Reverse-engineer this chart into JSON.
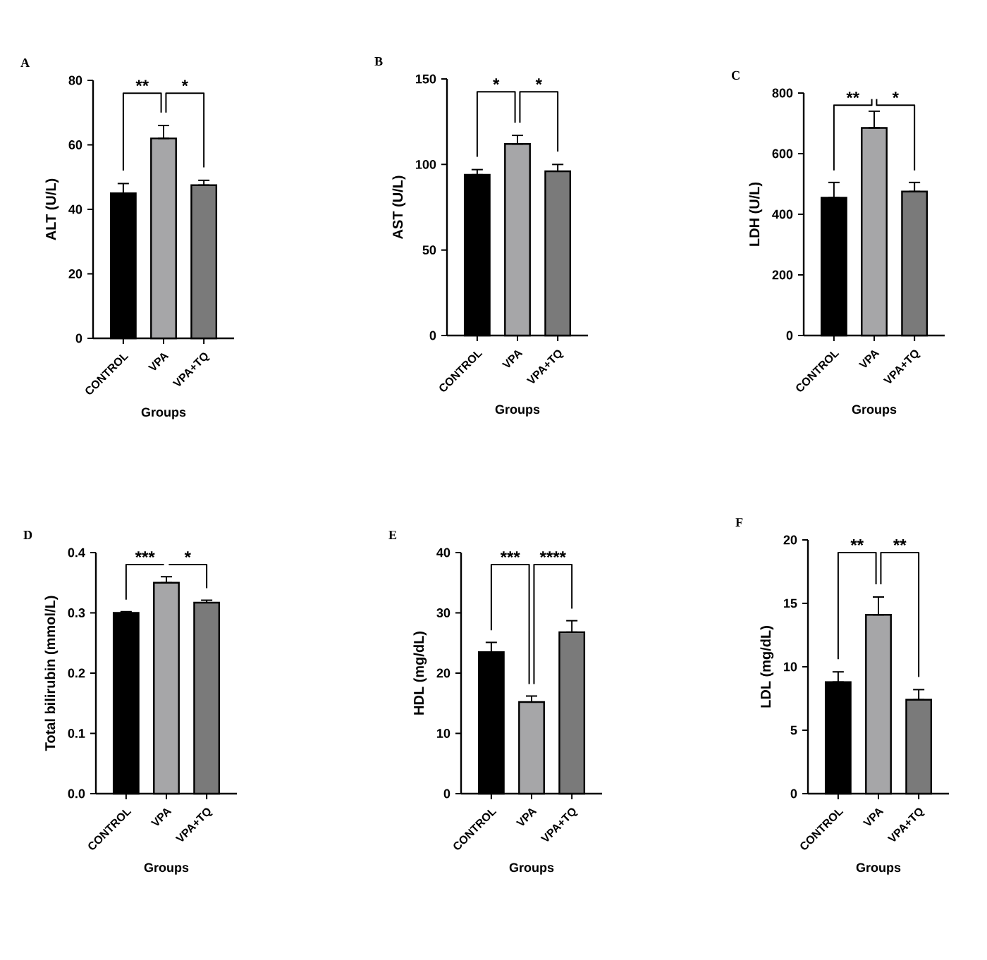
{
  "chart_data": [
    {
      "type": "bar",
      "title": "A",
      "categories": [
        "CONTROL",
        "VPA",
        "VPA+TQ"
      ],
      "xlabel": "Groups",
      "ylabel": "ALT (U/L)",
      "colors": [
        "#000000",
        "#a6a6a8",
        "#7a7a7a"
      ],
      "values": [
        45,
        62,
        47.5
      ],
      "errors": [
        [
          45,
          48
        ],
        [
          62,
          66
        ],
        [
          47.5,
          49
        ]
      ],
      "ylim": [
        0,
        80
      ],
      "yticks": [
        0,
        20,
        40,
        60,
        80
      ],
      "annotations": [
        "**",
        "*"
      ]
    },
    {
      "type": "bar",
      "title": "B",
      "categories": [
        "CONTROL",
        "VPA",
        "VPA+TQ"
      ],
      "xlabel": "Groups",
      "ylabel": "AST (U/L)",
      "colors": [
        "#000000",
        "#a6a6a8",
        "#7a7a7a"
      ],
      "values": [
        94,
        112,
        96
      ],
      "errors": [
        [
          94,
          97
        ],
        [
          112,
          117
        ],
        [
          96,
          100
        ]
      ],
      "ylim": [
        0,
        150
      ],
      "yticks": [
        0,
        50,
        100,
        150
      ],
      "annotations": [
        "*",
        "*"
      ]
    },
    {
      "type": "bar",
      "title": "C",
      "categories": [
        "CONTROL",
        "VPA",
        "VPA+TQ"
      ],
      "xlabel": "Groups",
      "ylabel": "LDH (U/L)",
      "colors": [
        "#000000",
        "#a6a6a8",
        "#7a7a7a"
      ],
      "values": [
        455,
        685,
        475
      ],
      "errors": [
        [
          455,
          505
        ],
        [
          685,
          740
        ],
        [
          475,
          505
        ]
      ],
      "ylim": [
        0,
        800
      ],
      "yticks": [
        0,
        200,
        400,
        600,
        800
      ],
      "annotations": [
        "**",
        "*"
      ]
    },
    {
      "type": "bar",
      "title": "D",
      "categories": [
        "CONTROL",
        "VPA",
        "VPA+TQ"
      ],
      "xlabel": "Groups",
      "ylabel": "Total bilirubin (mmol/L)",
      "colors": [
        "#000000",
        "#a6a6a8",
        "#7a7a7a"
      ],
      "values": [
        0.3,
        0.35,
        0.317
      ],
      "errors": [
        [
          0.3,
          0.302
        ],
        [
          0.35,
          0.36
        ],
        [
          0.317,
          0.321
        ]
      ],
      "ylim": [
        0,
        0.4
      ],
      "yticks": [
        {
          "value": 0,
          "label": "0.0"
        },
        0.1,
        0.2,
        0.3,
        0.4
      ],
      "annotations": [
        "***",
        "*"
      ]
    },
    {
      "type": "bar",
      "title": "E",
      "categories": [
        "CONTROL",
        "VPA",
        "VPA+TQ"
      ],
      "xlabel": "Groups",
      "ylabel": "HDL (mg/dL)",
      "colors": [
        "#000000",
        "#a6a6a8",
        "#7a7a7a"
      ],
      "values": [
        23.5,
        15.2,
        26.8
      ],
      "errors": [
        [
          23.5,
          25.1
        ],
        [
          15.2,
          16.2
        ],
        [
          26.8,
          28.7
        ]
      ],
      "ylim": [
        0,
        40
      ],
      "yticks": [
        0,
        10,
        20,
        30,
        40
      ],
      "annotations": [
        "***",
        "****"
      ]
    },
    {
      "type": "bar",
      "title": "F",
      "categories": [
        "CONTROL",
        "VPA",
        "VPA+TQ"
      ],
      "xlabel": "Groups",
      "ylabel": "LDL (mg/dL)",
      "colors": [
        "#000000",
        "#a6a6a8",
        "#7a7a7a"
      ],
      "values": [
        8.8,
        14.1,
        7.4
      ],
      "errors": [
        [
          8.8,
          9.6
        ],
        [
          14.1,
          15.5
        ],
        [
          7.4,
          8.2
        ]
      ],
      "ylim": [
        0,
        20
      ],
      "yticks": [
        0,
        5,
        10,
        15,
        20
      ],
      "annotations": [
        "**",
        "**"
      ]
    }
  ]
}
